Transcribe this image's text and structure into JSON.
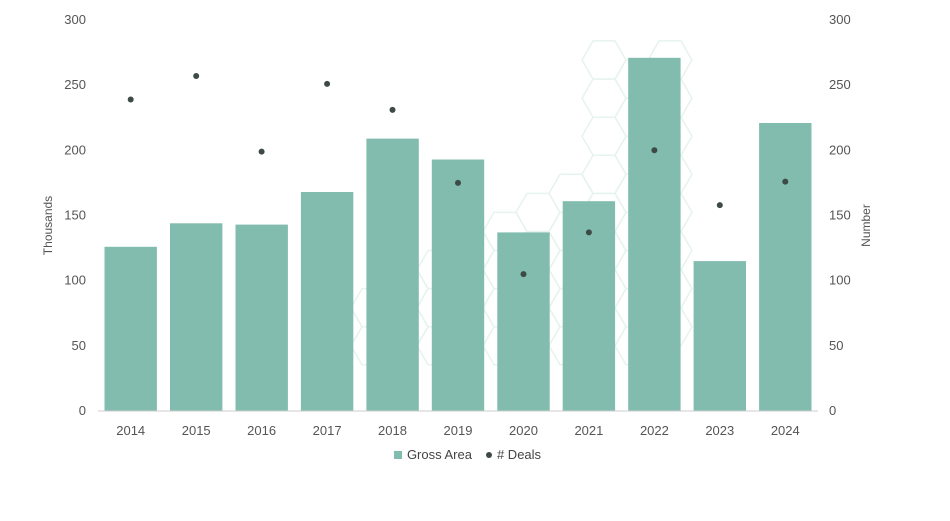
{
  "chart_data": {
    "type": "bar",
    "categories": [
      "2014",
      "2015",
      "2016",
      "2017",
      "2018",
      "2019",
      "2020",
      "2021",
      "2022",
      "2023",
      "2024"
    ],
    "series": [
      {
        "name": "Gross Area",
        "type": "bar",
        "axis": "left",
        "values": [
          126,
          144,
          143,
          168,
          209,
          193,
          137,
          161,
          271,
          115,
          221
        ]
      },
      {
        "name": "# Deals",
        "type": "scatter",
        "axis": "right",
        "values": [
          239,
          257,
          199,
          251,
          231,
          175,
          105,
          137,
          200,
          158,
          176
        ]
      }
    ],
    "ylabel": "Thousands",
    "y2label": "Number",
    "ylim": [
      0,
      300
    ],
    "y2lim": [
      0,
      300
    ],
    "yticks": [
      0,
      50,
      100,
      150,
      200,
      250,
      300
    ],
    "y2ticks": [
      0,
      50,
      100,
      150,
      200,
      250,
      300
    ],
    "grid": false,
    "legend_position": "bottom-center",
    "colors": {
      "bar": "#82bcae",
      "dot": "#3d4a45",
      "watermark": "#e6f3ef"
    }
  },
  "legend": {
    "bar_label": "Gross Area",
    "dot_label": "# Deals"
  }
}
